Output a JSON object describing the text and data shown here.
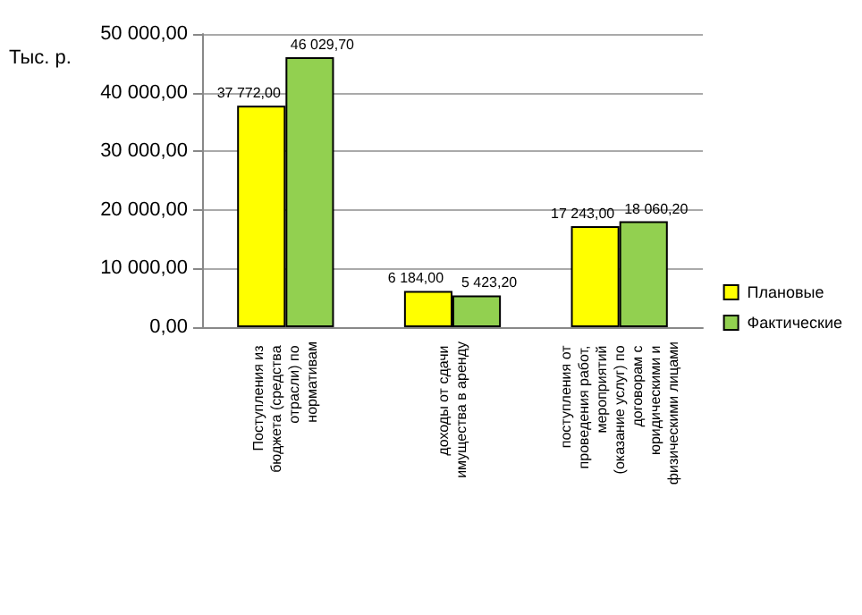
{
  "chart_data": {
    "type": "bar",
    "ylabel": "Тыс. р.",
    "categories": [
      "Поступления из бюджета (средства отрасли) по нормативам",
      "доходы от сдачи имущества в аренду",
      "поступления от проведения работ, мероприятий (оказание услуг) по договорам с юридическими и физическими лицами"
    ],
    "series": [
      {
        "name": "Плановые",
        "color": "#ffff00",
        "values": [
          37772.0,
          6184.0,
          17243.0
        ],
        "value_labels": [
          "37 772,00",
          "6 184,00",
          "17 243,00"
        ]
      },
      {
        "name": "Фактические",
        "color": "#92d050",
        "values": [
          46029.7,
          5423.2,
          18060.2
        ],
        "value_labels": [
          "46 029,70",
          "5 423,20",
          "18 060,20"
        ]
      }
    ],
    "ylim": [
      0,
      50000
    ],
    "yticks": [
      {
        "value": 0,
        "label": "0,00"
      },
      {
        "value": 10000,
        "label": "10 000,00"
      },
      {
        "value": 20000,
        "label": "20 000,00"
      },
      {
        "value": 30000,
        "label": "30 000,00"
      },
      {
        "value": 40000,
        "label": "40 000,00"
      },
      {
        "value": 50000,
        "label": "50 000,00"
      }
    ],
    "grid": "y",
    "legend": "right"
  }
}
